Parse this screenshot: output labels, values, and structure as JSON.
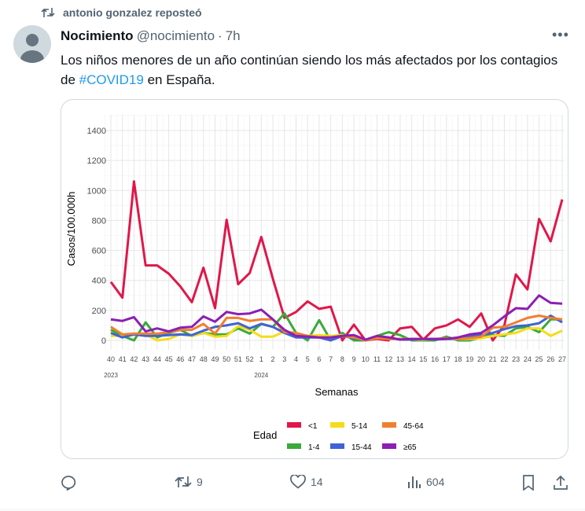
{
  "repost": {
    "label": "antonio gonzalez reposteó"
  },
  "tweet": {
    "name": "Nocimiento",
    "handle": "@nocimiento",
    "sep": "·",
    "time": "7h",
    "text_before": "Los niños menores de un año continúan siendo los más afectados por los contagios de ",
    "hashtag": "#COVID19",
    "text_after": " en España."
  },
  "actions": {
    "replies": "",
    "reposts": "9",
    "likes": "14",
    "views": "604"
  },
  "chart_data": {
    "type": "line",
    "xlabel": "Semanas",
    "ylabel": "Casos/100.000h",
    "ylim": [
      0,
      1400
    ],
    "y_ticks": [
      "0",
      "200",
      "400",
      "600",
      "800",
      "1000",
      "1200",
      "1400"
    ],
    "x_ticks": [
      "40",
      "41",
      "42",
      "43",
      "44",
      "45",
      "46",
      "47",
      "48",
      "49",
      "50",
      "51",
      "52",
      "1",
      "2",
      "3",
      "4",
      "5",
      "6",
      "7",
      "8",
      "9",
      "10",
      "11",
      "12",
      "13",
      "14",
      "15",
      "16",
      "17",
      "18",
      "19",
      "20",
      "21",
      "22",
      "23",
      "24",
      "25",
      "26",
      "27"
    ],
    "year_labels": [
      {
        "label": "2023",
        "week_index": 0
      },
      {
        "label": "2024",
        "week_index": 13
      }
    ],
    "grid": true,
    "legend_title": "Edad",
    "legend_position": "bottom",
    "series": [
      {
        "name": "<1",
        "color": "#e0174a",
        "values": [
          390,
          285,
          1060,
          500,
          500,
          445,
          360,
          255,
          485,
          215,
          805,
          375,
          450,
          690,
          410,
          150,
          190,
          260,
          210,
          225,
          0,
          105,
          0,
          10,
          0,
          80,
          90,
          5,
          80,
          100,
          140,
          90,
          180,
          0,
          100,
          440,
          340,
          810,
          660,
          940
        ]
      },
      {
        "name": "1-4",
        "color": "#3aaa3a",
        "values": [
          70,
          30,
          0,
          120,
          20,
          50,
          70,
          30,
          50,
          40,
          40,
          80,
          45,
          110,
          90,
          180,
          50,
          0,
          135,
          0,
          50,
          0,
          0,
          30,
          55,
          35,
          0,
          0,
          0,
          25,
          0,
          0,
          20,
          35,
          30,
          80,
          90,
          55,
          140,
          140
        ]
      },
      {
        "name": "5-14",
        "color": "#f5dc1a",
        "values": [
          30,
          30,
          40,
          40,
          0,
          10,
          40,
          30,
          50,
          25,
          30,
          95,
          70,
          25,
          25,
          60,
          50,
          30,
          35,
          30,
          35,
          20,
          0,
          30,
          20,
          5,
          5,
          5,
          10,
          10,
          10,
          10,
          15,
          30,
          40,
          50,
          80,
          80,
          30,
          65
        ]
      },
      {
        "name": "15-44",
        "color": "#3f63d6",
        "values": [
          50,
          20,
          40,
          30,
          30,
          35,
          40,
          35,
          65,
          90,
          100,
          115,
          80,
          110,
          90,
          50,
          20,
          20,
          20,
          0,
          30,
          15,
          0,
          20,
          20,
          5,
          5,
          10,
          5,
          10,
          10,
          25,
          35,
          50,
          75,
          95,
          100,
          115,
          165,
          120
        ]
      },
      {
        "name": "45-64",
        "color": "#f07f2f",
        "values": [
          90,
          40,
          45,
          45,
          45,
          55,
          70,
          70,
          110,
          45,
          150,
          150,
          130,
          140,
          140,
          55,
          50,
          30,
          20,
          20,
          30,
          20,
          0,
          15,
          10,
          10,
          10,
          10,
          10,
          15,
          10,
          15,
          25,
          85,
          90,
          120,
          150,
          165,
          150,
          140
        ]
      },
      {
        "name": "≥65",
        "color": "#8b1fb4",
        "values": [
          140,
          130,
          155,
          60,
          80,
          60,
          85,
          90,
          160,
          125,
          190,
          175,
          180,
          205,
          140,
          70,
          30,
          25,
          20,
          20,
          30,
          35,
          5,
          30,
          20,
          5,
          10,
          10,
          10,
          10,
          20,
          40,
          50,
          100,
          160,
          215,
          210,
          300,
          250,
          245
        ]
      }
    ]
  }
}
